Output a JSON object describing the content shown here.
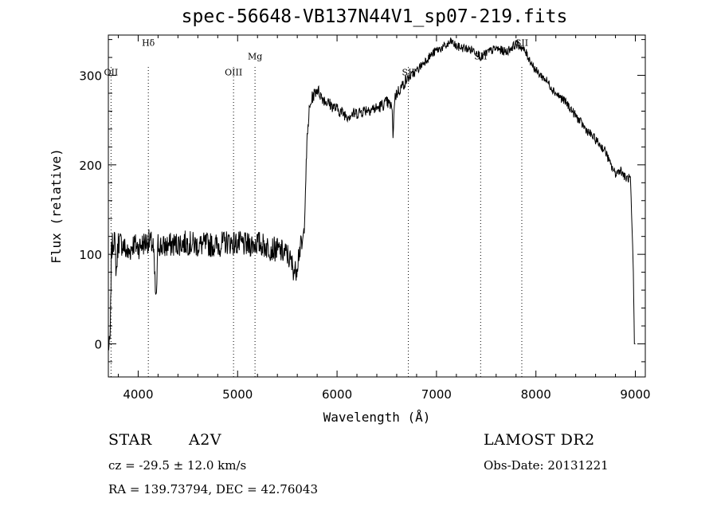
{
  "title": "spec-56648-VB137N44V1_sp07-219.fits",
  "info": {
    "class": "STAR",
    "subclass": "A2V",
    "survey": "LAMOST DR2",
    "velocity": "cz = -29.5 ± 12.0 km/s",
    "obs_date": "Obs-Date: 20131221",
    "coords": "RA = 139.73794, DEC =  42.76043"
  },
  "chart_data": {
    "type": "line",
    "xlabel": "Wavelength (Å)",
    "ylabel": "Flux (relative)",
    "xlim": [
      3700,
      9100
    ],
    "ylim": [
      -37,
      345
    ],
    "xticks": [
      4000,
      5000,
      6000,
      7000,
      8000,
      9000
    ],
    "yticks": [
      0,
      100,
      200,
      300
    ],
    "grid": false,
    "lines": [
      {
        "label": "OII",
        "x": 3727,
        "label_y": 300
      },
      {
        "label": "Hδ",
        "x": 4102,
        "label_y": 333
      },
      {
        "label": "OIII",
        "x": 4959,
        "label_y": 300
      },
      {
        "label": "Mg",
        "x": 5175,
        "label_y": 318
      },
      {
        "label": "SII",
        "x": 6717,
        "label_y": 300
      },
      {
        "label": "SII",
        "x": 7444,
        "label_y": 318
      },
      {
        "label": "SII",
        "x": 7858,
        "label_y": 333
      }
    ],
    "series": [
      {
        "x": [
          3700,
          3710,
          3720,
          3730,
          3740,
          3760,
          3780,
          3800,
          3850,
          3900,
          3950,
          4000,
          4050,
          4100,
          4150,
          4180,
          4200,
          4250,
          4300,
          4400,
          4500,
          4600,
          4700,
          4800,
          4900,
          5000,
          5100,
          5200,
          5300,
          5400,
          5500,
          5580,
          5600,
          5620,
          5650,
          5670,
          5690,
          5700,
          5720,
          5750,
          5800,
          5850,
          5900,
          6000,
          6100,
          6200,
          6300,
          6400,
          6500,
          6550,
          6563,
          6580,
          6600,
          6700,
          6800,
          6900,
          7000,
          7100,
          7150,
          7200,
          7300,
          7400,
          7450,
          7500,
          7600,
          7700,
          7800,
          7850,
          7900,
          8000,
          8100,
          8200,
          8300,
          8400,
          8500,
          8600,
          8700,
          8750,
          8800,
          8850,
          8900,
          8950,
          8980,
          8990,
          9000
        ],
        "y": [
          0,
          -5,
          10,
          100,
          110,
          120,
          80,
          115,
          110,
          100,
          112,
          108,
          112,
          115,
          110,
          45,
          112,
          108,
          110,
          112,
          113,
          110,
          111,
          110,
          114,
          112,
          110,
          113,
          108,
          105,
          100,
          80,
          90,
          105,
          110,
          130,
          200,
          230,
          260,
          275,
          285,
          275,
          270,
          262,
          255,
          258,
          262,
          263,
          270,
          265,
          235,
          275,
          280,
          295,
          305,
          318,
          328,
          333,
          338,
          332,
          330,
          327,
          320,
          325,
          330,
          326,
          335,
          332,
          325,
          305,
          295,
          280,
          270,
          255,
          240,
          228,
          215,
          200,
          190,
          195,
          185,
          185,
          80,
          0,
          0
        ]
      }
    ]
  }
}
